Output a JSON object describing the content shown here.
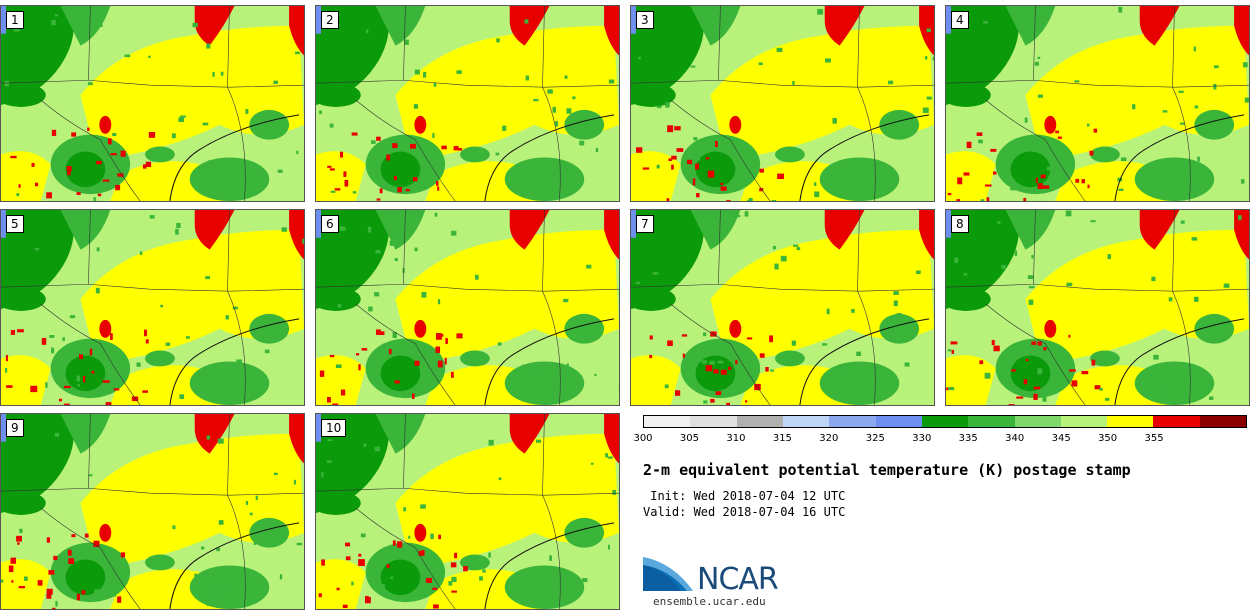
{
  "panels": [
    {
      "label": "1"
    },
    {
      "label": "2"
    },
    {
      "label": "3"
    },
    {
      "label": "4"
    },
    {
      "label": "5"
    },
    {
      "label": "6"
    },
    {
      "label": "7"
    },
    {
      "label": "8"
    },
    {
      "label": "9"
    },
    {
      "label": "10"
    }
  ],
  "colorbar": {
    "colors": [
      "#f0f0f0",
      "#e0e0e0",
      "#b0b0b0",
      "#c0d4f5",
      "#8ea8f0",
      "#6f8ff0",
      "#0a9a0a",
      "#3ab53a",
      "#7fd66a",
      "#b8f27a",
      "#ffff00",
      "#e80000",
      "#8a0000"
    ],
    "ticks": [
      "300",
      "305",
      "310",
      "315",
      "320",
      "325",
      "330",
      "335",
      "340",
      "345",
      "350",
      "355"
    ]
  },
  "title": "2-m equivalent potential temperature (K) postage stamp",
  "init": " Init: Wed 2018-07-04 12 UTC",
  "valid": "Valid: Wed 2018-07-04 16 UTC",
  "logo_text": "NCAR",
  "site": "ensemble.ucar.edu"
}
